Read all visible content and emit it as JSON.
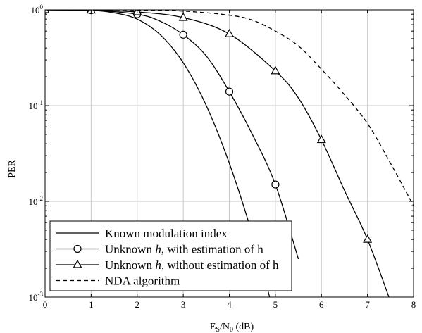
{
  "chart_data": {
    "type": "line",
    "xlabel": {
      "base": "E",
      "sub1": "S",
      "mid": "/N",
      "sub2": "0",
      "tail": " (dB)"
    },
    "ylabel": "PER",
    "xlim": [
      0,
      8
    ],
    "ylim": [
      0.001,
      1
    ],
    "yscale": "log",
    "grid": true,
    "legend_position": "bottom-left",
    "x_ticks": [
      "0",
      "1",
      "2",
      "3",
      "4",
      "5",
      "6",
      "7",
      "8"
    ],
    "y_ticks": [
      {
        "value": 1,
        "base": "10",
        "exp": "0"
      },
      {
        "value": 0.1,
        "base": "10",
        "exp": "-1"
      },
      {
        "value": 0.01,
        "base": "10",
        "exp": "-2"
      },
      {
        "value": 0.001,
        "base": "10",
        "exp": "-3"
      }
    ],
    "series": [
      {
        "legend": {
          "pre": "Known modulation index",
          "italic": "",
          "post": ""
        },
        "marker": "none",
        "dash": "solid",
        "x": [
          0,
          1,
          1.5,
          2,
          2.5,
          3,
          3.5,
          4,
          4.5,
          5
        ],
        "y": [
          1.0,
          0.985,
          0.93,
          0.8,
          0.55,
          0.28,
          0.1,
          0.025,
          0.0045,
          0.0006
        ],
        "marker_x": []
      },
      {
        "legend": {
          "pre": "Unknown ",
          "italic": "h",
          "post": ", with estimation of h"
        },
        "marker": "circle",
        "dash": "solid",
        "x": [
          0,
          1,
          2,
          2.5,
          3,
          3.5,
          4,
          4.5,
          5,
          5.5
        ],
        "y": [
          1.0,
          0.99,
          0.9,
          0.76,
          0.55,
          0.33,
          0.14,
          0.05,
          0.015,
          0.0025
        ],
        "marker_x": [
          0,
          1,
          2,
          3,
          4,
          5
        ]
      },
      {
        "legend": {
          "pre": "Unknown ",
          "italic": "h",
          "post": ", without estimation of h"
        },
        "marker": "triangle",
        "dash": "solid",
        "x": [
          0,
          1,
          2,
          3,
          4,
          5,
          5.5,
          6,
          6.5,
          7,
          7.5
        ],
        "y": [
          1.0,
          0.99,
          0.95,
          0.83,
          0.56,
          0.23,
          0.12,
          0.044,
          0.013,
          0.004,
          0.0009
        ],
        "marker_x": [
          0,
          1,
          2,
          3,
          4,
          5,
          6,
          7
        ]
      },
      {
        "legend": {
          "pre": "NDA algorithm",
          "italic": "",
          "post": ""
        },
        "marker": "none",
        "dash": "dashed",
        "x": [
          0,
          2,
          3,
          4,
          4.5,
          5,
          5.5,
          6,
          6.5,
          7,
          7.5,
          8
        ],
        "y": [
          1.0,
          0.995,
          0.97,
          0.88,
          0.78,
          0.6,
          0.42,
          0.24,
          0.13,
          0.065,
          0.025,
          0.009
        ],
        "marker_x": []
      }
    ]
  }
}
